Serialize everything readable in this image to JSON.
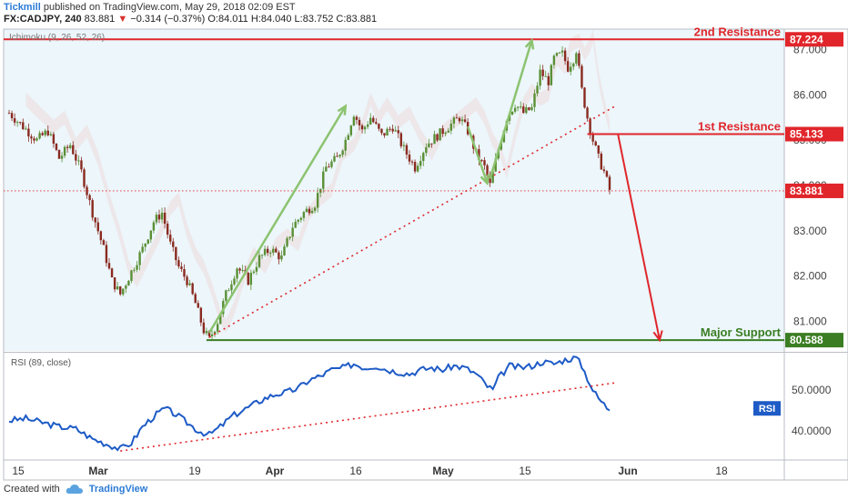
{
  "header": {
    "brand": "Tickmill",
    "published": "published on TradingView.com, May 29, 2018 02:09 EST",
    "symbol": "FX:CADJPY, 240",
    "last": "83.881",
    "change_arrow": "▼",
    "change": "−0.314 (−0.37%)",
    "ohlc": "O:84.011 H:84.040 L:83.752 C:83.881"
  },
  "footer": {
    "created_with": "Created with",
    "tradingview": "TradingView"
  },
  "colors": {
    "resistance": "#e0262b",
    "support": "#3b7d23",
    "trend_arrow": "#8cc370",
    "rsi": "#1e5bc6",
    "candle_up": "#5a8f35",
    "candle_down": "#8a2a20",
    "cloud": "#f2cccc",
    "price_bg": "#ecf6fb"
  },
  "chart_data": [
    {
      "type": "candlestick",
      "title": "",
      "indicator_label": "Ichimoku (9, 26, 52, 26)",
      "x_ticks": [
        "15",
        "Mar",
        "19",
        "Apr",
        "16",
        "May",
        "15",
        "Jun",
        "18"
      ],
      "y_ticks": [
        "81.000",
        "82.000",
        "83.000",
        "84.000",
        "85.000",
        "86.000",
        "87.000"
      ],
      "ylim": [
        80.35,
        87.45
      ],
      "last_price": 83.881,
      "close_path": [
        [
          0,
          85.6
        ],
        [
          5,
          85.3
        ],
        [
          10,
          85.0
        ],
        [
          14,
          85.2
        ],
        [
          18,
          84.6
        ],
        [
          22,
          84.9
        ],
        [
          26,
          84.3
        ],
        [
          30,
          83.4
        ],
        [
          34,
          82.6
        ],
        [
          37,
          81.9
        ],
        [
          40,
          81.6
        ],
        [
          44,
          82.1
        ],
        [
          48,
          82.6
        ],
        [
          52,
          83.2
        ],
        [
          55,
          83.4
        ],
        [
          58,
          82.7
        ],
        [
          61,
          82.2
        ],
        [
          64,
          81.9
        ],
        [
          67,
          81.4
        ],
        [
          70,
          80.8
        ],
        [
          72,
          80.6
        ],
        [
          75,
          81.0
        ],
        [
          78,
          81.6
        ],
        [
          82,
          82.2
        ],
        [
          86,
          81.9
        ],
        [
          90,
          82.4
        ],
        [
          94,
          82.6
        ],
        [
          98,
          82.4
        ],
        [
          102,
          83.1
        ],
        [
          106,
          83.4
        ],
        [
          110,
          83.6
        ],
        [
          114,
          84.4
        ],
        [
          118,
          84.6
        ],
        [
          121,
          85.0
        ],
        [
          124,
          85.6
        ],
        [
          127,
          85.2
        ],
        [
          130,
          85.5
        ],
        [
          134,
          85.1
        ],
        [
          138,
          85.3
        ],
        [
          142,
          84.8
        ],
        [
          146,
          84.4
        ],
        [
          150,
          84.9
        ],
        [
          154,
          85.1
        ],
        [
          158,
          85.3
        ],
        [
          162,
          85.5
        ],
        [
          165,
          85.2
        ],
        [
          168,
          84.7
        ],
        [
          171,
          84.4
        ],
        [
          173,
          84.0
        ],
        [
          176,
          84.8
        ],
        [
          179,
          85.5
        ],
        [
          182,
          85.8
        ],
        [
          185,
          85.6
        ],
        [
          188,
          85.7
        ],
        [
          191,
          86.5
        ],
        [
          194,
          86.3
        ],
        [
          196,
          86.8
        ],
        [
          199,
          86.9
        ],
        [
          201,
          86.6
        ],
        [
          203,
          86.8
        ],
        [
          204,
          87.0
        ],
        [
          206,
          86.1
        ],
        [
          208,
          85.5
        ],
        [
          210,
          85.0
        ],
        [
          212,
          84.6
        ],
        [
          214,
          84.3
        ],
        [
          216,
          83.9
        ]
      ],
      "annotations": [
        {
          "label": "2nd Resistance",
          "value": 87.224
        },
        {
          "label": "1st Resistance",
          "value": 85.133
        },
        {
          "label": "Major Support",
          "value": 80.588
        }
      ]
    },
    {
      "type": "line",
      "title": "",
      "indicator_label": "RSI (89, close)",
      "series_name": "RSI",
      "y_ticks": [
        "40.0000",
        "50.0000"
      ],
      "ylim": [
        33,
        59
      ],
      "values": [
        [
          0,
          42.5
        ],
        [
          6,
          43
        ],
        [
          12,
          42
        ],
        [
          18,
          41
        ],
        [
          24,
          40.5
        ],
        [
          30,
          38
        ],
        [
          36,
          36.5
        ],
        [
          40,
          35.5
        ],
        [
          44,
          37
        ],
        [
          48,
          41
        ],
        [
          52,
          43.5
        ],
        [
          56,
          45.5
        ],
        [
          60,
          44
        ],
        [
          64,
          42
        ],
        [
          68,
          40
        ],
        [
          72,
          39
        ],
        [
          76,
          41
        ],
        [
          80,
          43.5
        ],
        [
          84,
          45
        ],
        [
          88,
          46.5
        ],
        [
          92,
          48
        ],
        [
          96,
          49
        ],
        [
          100,
          49.5
        ],
        [
          104,
          50.5
        ],
        [
          108,
          52.5
        ],
        [
          112,
          53.5
        ],
        [
          116,
          55
        ],
        [
          120,
          55.5
        ],
        [
          124,
          56.5
        ],
        [
          128,
          55.5
        ],
        [
          132,
          56
        ],
        [
          136,
          55
        ],
        [
          140,
          54.5
        ],
        [
          144,
          54
        ],
        [
          148,
          55
        ],
        [
          152,
          55.5
        ],
        [
          156,
          55
        ],
        [
          160,
          56
        ],
        [
          164,
          55.5
        ],
        [
          168,
          54
        ],
        [
          172,
          51
        ],
        [
          174,
          50
        ],
        [
          176,
          53
        ],
        [
          180,
          56
        ],
        [
          184,
          55.5
        ],
        [
          188,
          56
        ],
        [
          192,
          57
        ],
        [
          196,
          56.5
        ],
        [
          200,
          57.5
        ],
        [
          204,
          58
        ],
        [
          206,
          56
        ],
        [
          208,
          53
        ],
        [
          210,
          50
        ],
        [
          212,
          48
        ],
        [
          214,
          46.5
        ],
        [
          216,
          45
        ]
      ]
    }
  ]
}
